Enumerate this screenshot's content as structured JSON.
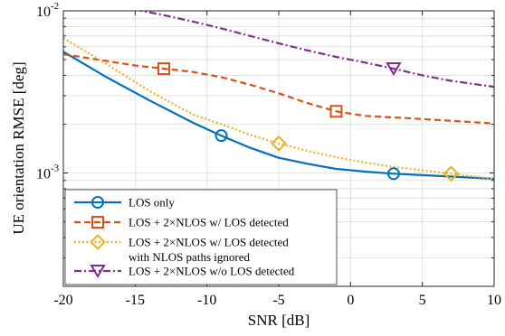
{
  "chart_data": {
    "type": "line",
    "xlabel": "SNR [dB]",
    "ylabel": "UE orientation RMSE [deg]",
    "xlim": [
      -20,
      10
    ],
    "ylim": [
      0.0002,
      0.01
    ],
    "yscale": "log",
    "grid": true,
    "legend_position": "bottom-left",
    "x_ticks": [
      -20,
      -15,
      -10,
      -5,
      0,
      5,
      10
    ],
    "x_tick_labels": [
      "-20",
      "-15",
      "-10",
      "-5",
      "0",
      "5",
      "10"
    ],
    "y_ticks": [
      0.001,
      0.01
    ],
    "y_tick_labels": [
      {
        "base": "10",
        "exp": "-3"
      },
      {
        "base": "10",
        "exp": "-2"
      }
    ],
    "series": [
      {
        "name": "LOS only",
        "color": "#0072BD",
        "line_style": "solid",
        "marker": "circle",
        "x": [
          -20,
          -17,
          -14,
          -11,
          -9,
          -7,
          -5,
          -3,
          -1,
          1,
          3,
          5,
          7,
          10
        ],
        "y": [
          0.0056,
          0.0039,
          0.0028,
          0.00205,
          0.0017,
          0.00143,
          0.00124,
          0.00114,
          0.00106,
          0.00102,
          0.00099,
          0.00097,
          0.00095,
          0.00092
        ],
        "marker_x": [
          -9,
          3
        ]
      },
      {
        "name": "LOS + 2×NLOS w/ LOS detected",
        "color": "#D95319",
        "line_style": "dashed",
        "marker": "square",
        "x": [
          -20,
          -17,
          -15,
          -13,
          -11,
          -9,
          -7,
          -5,
          -3,
          -1,
          1,
          3,
          5,
          7,
          10
        ],
        "y": [
          0.0054,
          0.0049,
          0.0046,
          0.0044,
          0.0042,
          0.0039,
          0.0035,
          0.0031,
          0.0027,
          0.0024,
          0.00225,
          0.0022,
          0.00215,
          0.0021,
          0.00202
        ],
        "marker_x": [
          -13,
          -1
        ]
      },
      {
        "name": "LOS + 2×NLOS w/ LOS detected",
        "name_line2": "with NLOS paths ignored",
        "color": "#EDB120",
        "line_style": "dotted",
        "marker": "diamond",
        "x": [
          -20,
          -17,
          -14,
          -11,
          -9,
          -7,
          -5,
          -3,
          -1,
          1,
          3,
          5,
          7,
          10
        ],
        "y": [
          0.0068,
          0.0047,
          0.0032,
          0.0023,
          0.002,
          0.00172,
          0.00152,
          0.00137,
          0.00125,
          0.00116,
          0.00109,
          0.00104,
          0.00099,
          0.00092
        ],
        "marker_x": [
          -5,
          7
        ]
      },
      {
        "name": "LOS + 2×NLOS w/o LOS detected",
        "color": "#7E2F8E",
        "line_style": "dashdot",
        "marker": "triangle-down",
        "x": [
          -15,
          -13,
          -11,
          -9,
          -7,
          -5,
          -3,
          -1,
          1,
          3,
          5,
          7,
          10
        ],
        "y": [
          0.0102,
          0.0094,
          0.0086,
          0.0078,
          0.007,
          0.0063,
          0.0057,
          0.0052,
          0.0048,
          0.0044,
          0.004,
          0.0037,
          0.0034
        ],
        "marker_x": [
          3
        ]
      }
    ]
  }
}
